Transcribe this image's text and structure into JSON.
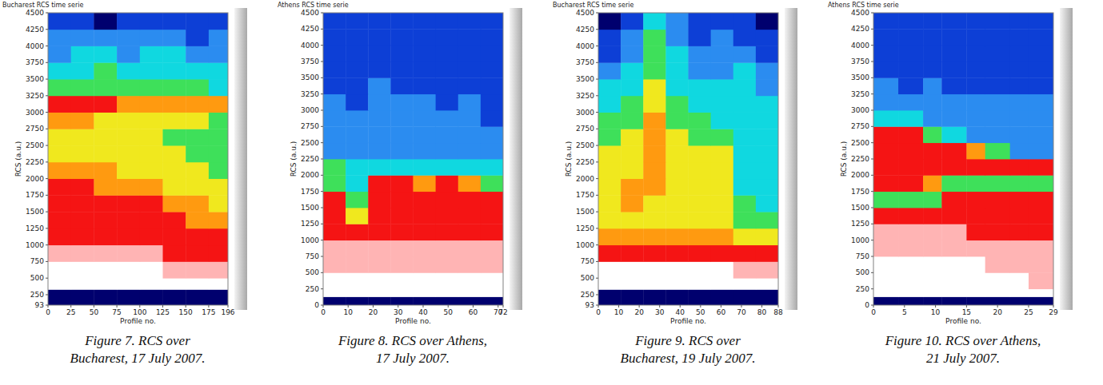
{
  "chart_data": [
    {
      "type": "heatmap",
      "title": "Bucharest RCS time serie",
      "x_label": "Profile no.",
      "y_label": "RCS (a.u.)",
      "caption": "Figure 7. RCS over Bucharest, 17 July 2007.",
      "xlim": [
        0,
        196
      ],
      "xticks": [
        0,
        25,
        50,
        75,
        100,
        125,
        150,
        175,
        196
      ],
      "ylim": [
        93,
        4500
      ],
      "yticks": [
        93,
        250,
        500,
        750,
        1000,
        1250,
        1500,
        1750,
        2000,
        2250,
        2500,
        2750,
        3000,
        3250,
        3500,
        3750,
        4000,
        4250,
        4500
      ],
      "x_edges": [
        0,
        25,
        50,
        75,
        100,
        125,
        150,
        175,
        196
      ],
      "y_edges": [
        93,
        330,
        500,
        750,
        1000,
        1250,
        1500,
        1750,
        2000,
        2250,
        2500,
        2750,
        3000,
        3250,
        3500,
        3750,
        4000,
        4250,
        4500
      ],
      "color_range": [
        0,
        9
      ],
      "cells": [
        [
          0,
          0,
          0,
          0,
          0,
          0,
          0,
          0
        ],
        [
          9,
          9,
          9,
          9,
          9,
          9,
          9,
          9
        ],
        [
          9,
          9,
          9,
          9,
          9,
          8,
          8,
          8
        ],
        [
          8,
          8,
          8,
          8,
          8,
          7,
          7,
          7
        ],
        [
          7,
          7,
          7,
          7,
          7,
          7,
          7,
          7
        ],
        [
          7,
          7,
          7,
          7,
          7,
          7,
          6,
          6
        ],
        [
          7,
          7,
          7,
          7,
          7,
          6,
          6,
          5
        ],
        [
          7,
          7,
          6,
          6,
          6,
          5,
          5,
          5
        ],
        [
          6,
          6,
          6,
          5,
          5,
          5,
          5,
          4
        ],
        [
          5,
          5,
          5,
          5,
          5,
          5,
          4,
          4
        ],
        [
          5,
          5,
          5,
          5,
          5,
          4,
          4,
          4
        ],
        [
          6,
          6,
          5,
          5,
          5,
          5,
          5,
          4
        ],
        [
          7,
          7,
          7,
          6,
          6,
          6,
          6,
          6
        ],
        [
          4,
          4,
          4,
          4,
          4,
          4,
          4,
          3
        ],
        [
          3,
          3,
          4,
          3,
          3,
          3,
          3,
          3
        ],
        [
          2,
          3,
          3,
          2,
          3,
          3,
          2,
          2
        ],
        [
          2,
          2,
          2,
          2,
          2,
          2,
          1,
          2
        ],
        [
          1,
          1,
          0,
          1,
          1,
          1,
          1,
          1
        ]
      ]
    },
    {
      "type": "heatmap",
      "title": "Athens RCS time serie",
      "x_label": "Profile no.",
      "y_label": "RCS (a.u.)",
      "caption": "Figure 8. RCS over Athens, 17 July 2007.",
      "xlim": [
        0,
        72
      ],
      "xticks": [
        0,
        10,
        20,
        30,
        40,
        50,
        60,
        70,
        72
      ],
      "ylim": [
        0,
        4500
      ],
      "yticks": [
        0,
        250,
        500,
        750,
        1000,
        1250,
        1500,
        1750,
        2000,
        2250,
        2500,
        2750,
        3000,
        3250,
        3500,
        3750,
        4000,
        4250,
        4500
      ],
      "x_edges": [
        0,
        9,
        18,
        27,
        36,
        45,
        54,
        63,
        72
      ],
      "y_edges": [
        0,
        130,
        250,
        500,
        750,
        1000,
        1250,
        1500,
        1750,
        2000,
        2250,
        2500,
        2750,
        3000,
        3250,
        3500,
        3750,
        4000,
        4250,
        4500
      ],
      "color_range": [
        0,
        9
      ],
      "cells": [
        [
          0,
          0,
          0,
          0,
          0,
          0,
          0,
          0
        ],
        [
          9,
          9,
          9,
          9,
          9,
          9,
          9,
          9
        ],
        [
          9,
          9,
          9,
          9,
          9,
          9,
          9,
          9
        ],
        [
          8,
          8,
          8,
          8,
          8,
          8,
          8,
          8
        ],
        [
          8,
          8,
          8,
          8,
          8,
          8,
          8,
          8
        ],
        [
          7,
          7,
          7,
          7,
          7,
          7,
          7,
          7
        ],
        [
          7,
          5,
          7,
          7,
          7,
          7,
          7,
          7
        ],
        [
          7,
          4,
          7,
          7,
          7,
          7,
          7,
          7
        ],
        [
          4,
          3,
          7,
          7,
          6,
          7,
          6,
          4
        ],
        [
          4,
          3,
          3,
          3,
          3,
          3,
          3,
          3
        ],
        [
          2,
          2,
          2,
          2,
          2,
          2,
          2,
          2
        ],
        [
          2,
          2,
          2,
          2,
          2,
          2,
          2,
          2
        ],
        [
          2,
          2,
          2,
          2,
          2,
          2,
          2,
          1
        ],
        [
          2,
          1,
          2,
          2,
          2,
          1,
          2,
          1
        ],
        [
          1,
          1,
          2,
          1,
          1,
          1,
          1,
          1
        ],
        [
          1,
          1,
          1,
          1,
          1,
          1,
          1,
          1
        ],
        [
          1,
          1,
          1,
          1,
          1,
          1,
          1,
          1
        ],
        [
          1,
          1,
          1,
          1,
          1,
          1,
          1,
          1
        ],
        [
          1,
          1,
          1,
          1,
          1,
          1,
          1,
          1
        ]
      ]
    },
    {
      "type": "heatmap",
      "title": "Bucharest RCS time serie",
      "x_label": "Profile no.",
      "y_label": "RCS (a.u.)",
      "caption": "Figure 9. RCS over Bucharest, 19 July 2007.",
      "xlim": [
        0,
        88
      ],
      "xticks": [
        0,
        10,
        20,
        30,
        40,
        50,
        60,
        70,
        80,
        88
      ],
      "ylim": [
        93,
        4500
      ],
      "yticks": [
        93,
        250,
        500,
        750,
        1000,
        1250,
        1500,
        1750,
        2000,
        2250,
        2500,
        2750,
        3000,
        3250,
        3500,
        3750,
        4000,
        4250,
        4500
      ],
      "x_edges": [
        0,
        11,
        22,
        33,
        44,
        55,
        66,
        77,
        88
      ],
      "y_edges": [
        93,
        330,
        500,
        750,
        1000,
        1250,
        1500,
        1750,
        2000,
        2250,
        2500,
        2750,
        3000,
        3250,
        3500,
        3750,
        4000,
        4250,
        4500
      ],
      "color_range": [
        0,
        9
      ],
      "cells": [
        [
          0,
          0,
          0,
          0,
          0,
          0,
          0,
          0
        ],
        [
          9,
          9,
          9,
          9,
          9,
          9,
          9,
          9
        ],
        [
          9,
          9,
          9,
          9,
          9,
          9,
          8,
          8
        ],
        [
          7,
          7,
          7,
          7,
          7,
          7,
          7,
          7
        ],
        [
          6,
          6,
          6,
          6,
          6,
          6,
          5,
          5
        ],
        [
          5,
          5,
          5,
          5,
          5,
          5,
          4,
          4
        ],
        [
          5,
          6,
          5,
          5,
          5,
          5,
          4,
          3
        ],
        [
          5,
          6,
          6,
          5,
          5,
          5,
          3,
          3
        ],
        [
          5,
          5,
          6,
          5,
          5,
          5,
          3,
          3
        ],
        [
          5,
          5,
          6,
          5,
          5,
          5,
          3,
          3
        ],
        [
          4,
          5,
          6,
          5,
          4,
          4,
          3,
          3
        ],
        [
          4,
          4,
          6,
          4,
          4,
          3,
          3,
          3
        ],
        [
          3,
          4,
          5,
          4,
          3,
          3,
          3,
          3
        ],
        [
          3,
          3,
          5,
          3,
          3,
          3,
          3,
          2
        ],
        [
          2,
          3,
          4,
          3,
          2,
          2,
          3,
          2
        ],
        [
          1,
          2,
          4,
          3,
          2,
          2,
          2,
          1
        ],
        [
          1,
          2,
          4,
          2,
          1,
          2,
          1,
          1
        ],
        [
          0,
          1,
          3,
          2,
          1,
          1,
          1,
          0
        ]
      ]
    },
    {
      "type": "heatmap",
      "title": "Athens RCS time serie",
      "x_label": "Profile no.",
      "y_label": "RCS (a.u.)",
      "caption": "Figure 10. RCS over Athens, 21 July 2007.",
      "xlim": [
        0,
        29
      ],
      "xticks": [
        0,
        5,
        10,
        15,
        20,
        25,
        29
      ],
      "ylim": [
        0,
        4500
      ],
      "yticks": [
        0,
        250,
        500,
        750,
        1000,
        1250,
        1500,
        1750,
        2000,
        2250,
        2500,
        2750,
        3000,
        3250,
        3500,
        3750,
        4000,
        4250,
        4500
      ],
      "x_edges": [
        0,
        4,
        8,
        11,
        15,
        18,
        22,
        25,
        29
      ],
      "y_edges": [
        0,
        130,
        250,
        500,
        750,
        1000,
        1250,
        1500,
        1750,
        2000,
        2250,
        2500,
        2750,
        3000,
        3250,
        3500,
        3750,
        4000,
        4250,
        4500
      ],
      "color_range": [
        0,
        9
      ],
      "cells": [
        [
          0,
          0,
          0,
          0,
          0,
          0,
          0,
          0
        ],
        [
          9,
          9,
          9,
          9,
          9,
          9,
          9,
          9
        ],
        [
          9,
          9,
          9,
          9,
          9,
          9,
          9,
          8
        ],
        [
          9,
          9,
          9,
          9,
          9,
          8,
          8,
          8
        ],
        [
          8,
          8,
          8,
          8,
          8,
          8,
          8,
          8
        ],
        [
          8,
          8,
          8,
          8,
          7,
          7,
          7,
          7
        ],
        [
          7,
          7,
          7,
          7,
          7,
          7,
          7,
          7
        ],
        [
          4,
          4,
          4,
          7,
          7,
          7,
          7,
          7
        ],
        [
          7,
          7,
          6,
          4,
          4,
          4,
          4,
          4
        ],
        [
          7,
          7,
          7,
          7,
          7,
          7,
          7,
          7
        ],
        [
          7,
          7,
          7,
          7,
          6,
          4,
          2,
          2
        ],
        [
          7,
          7,
          4,
          3,
          2,
          2,
          2,
          2
        ],
        [
          3,
          3,
          2,
          2,
          2,
          2,
          2,
          2
        ],
        [
          2,
          2,
          2,
          2,
          2,
          2,
          2,
          2
        ],
        [
          2,
          1,
          2,
          1,
          1,
          1,
          1,
          1
        ],
        [
          1,
          1,
          1,
          1,
          1,
          1,
          1,
          1
        ],
        [
          1,
          1,
          1,
          1,
          1,
          1,
          1,
          1
        ],
        [
          1,
          1,
          1,
          1,
          1,
          1,
          1,
          1
        ],
        [
          1,
          1,
          1,
          1,
          1,
          1,
          1,
          1
        ]
      ]
    }
  ]
}
